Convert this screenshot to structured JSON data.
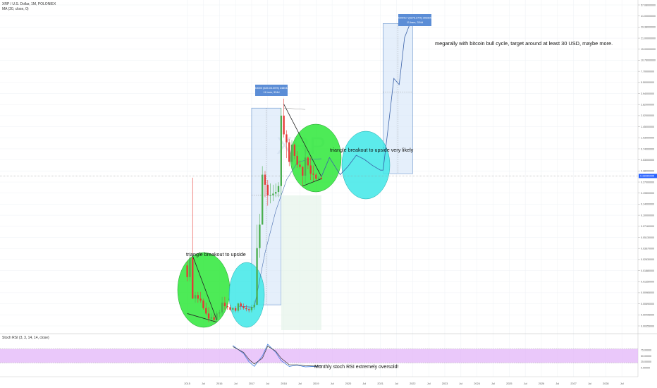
{
  "header": {
    "symbol_line": "XRP / U.S. Dollar, 1M, POLONIEX",
    "indicator_line": "MA (20, close, 0)",
    "stoch_line": "Stoch RSI (3, 3, 14, 14, close)"
  },
  "watermark": "XRP",
  "colors": {
    "bull": "#4caf50",
    "bear": "#e53935",
    "green_ellipse": "#2ee83a",
    "cyan_ellipse": "#3fe8e8",
    "range_box": "#cfe2f8",
    "range_border": "#4a7ec2",
    "rsi_band": "#e3b6f8",
    "current_price": "#2962ff"
  },
  "current_price_label": "0.33665095",
  "price_labels": [
    "57.08000000",
    "41.00000000",
    "29.38000000",
    "21.00000000",
    "15.00000000",
    "10.76000000",
    "7.70000000",
    "5.50000000",
    "3.94000000",
    "2.82000000",
    "2.02000000",
    "1.45000000",
    "1.03000000",
    "0.74000000",
    "0.53000000",
    "0.38000000",
    "0.27000000",
    "0.19500000",
    "0.14000000",
    "0.10000000",
    "0.07160000",
    "0.05130000",
    "0.03670000",
    "0.02630000",
    "0.01880000",
    "0.01350000",
    "0.00965000",
    "0.00690000",
    "0.00495000",
    "0.00355000"
  ],
  "time_labels": [
    "2015",
    "Jul",
    "2016",
    "Jul",
    "2017",
    "Jul",
    "2018",
    "Jul",
    "2019",
    "Jul",
    "2020",
    "Jul",
    "2021",
    "Jul",
    "2022",
    "Jul",
    "2023",
    "Jul",
    "2024",
    "Jul",
    "2025",
    "Jul",
    "2026",
    "Jul",
    "2027",
    "Jul",
    "2028",
    "Jul"
  ],
  "rsi_levels": [
    "75.00000",
    "50.00000",
    "25.00000",
    "0.00000"
  ],
  "measures": {
    "first": {
      "line1": "2.48043000 (625.03.00%) 2480430000",
      "line2": "11 bars, 334d"
    },
    "second": {
      "line1": "30.38000417 (8276.37%) 3038000417",
      "line2": "11 bars, 334d"
    }
  },
  "annotations": {
    "triangle1": "triangle breakout to upside",
    "triangle2": "triangle breakout to upside very likely",
    "target": "megarally with bitcoin bull cycle, target around at least 30 USD, maybe more.",
    "rsi_note": "Monthly stoch RSI extremely oversold!"
  },
  "chart_data": {
    "type": "candlestick",
    "title": "XRP / U.S. Dollar, 1M, POLONIEX",
    "scale": "log",
    "ylim": [
      0.00355,
      57.08
    ],
    "x_range": [
      "2014-11",
      "2029-01"
    ],
    "grid": true,
    "candles": [
      {
        "t": "2015-01",
        "o": 0.024,
        "h": 0.027,
        "l": 0.015,
        "c": 0.017
      },
      {
        "t": "2015-02",
        "o": 0.017,
        "h": 0.032,
        "l": 0.015,
        "c": 0.03
      },
      {
        "t": "2015-03",
        "o": 0.03,
        "h": 0.32,
        "l": 0.009,
        "c": 0.009
      },
      {
        "t": "2015-04",
        "o": 0.009,
        "h": 0.011,
        "l": 0.008,
        "c": 0.01
      },
      {
        "t": "2015-05",
        "o": 0.01,
        "h": 0.011,
        "l": 0.008,
        "c": 0.009
      },
      {
        "t": "2015-06",
        "o": 0.009,
        "h": 0.011,
        "l": 0.008,
        "c": 0.0085
      },
      {
        "t": "2015-07",
        "o": 0.0085,
        "h": 0.009,
        "l": 0.0065,
        "c": 0.0068
      },
      {
        "t": "2015-08",
        "o": 0.0068,
        "h": 0.008,
        "l": 0.0055,
        "c": 0.0058
      },
      {
        "t": "2015-09",
        "o": 0.0058,
        "h": 0.007,
        "l": 0.0045,
        "c": 0.005
      },
      {
        "t": "2015-10",
        "o": 0.005,
        "h": 0.0058,
        "l": 0.0045,
        "c": 0.0052
      },
      {
        "t": "2015-11",
        "o": 0.0052,
        "h": 0.0056,
        "l": 0.0045,
        "c": 0.0048
      },
      {
        "t": "2015-12",
        "o": 0.0048,
        "h": 0.0062,
        "l": 0.0045,
        "c": 0.0058
      },
      {
        "t": "2016-01",
        "o": 0.0058,
        "h": 0.0065,
        "l": 0.0052,
        "c": 0.006
      },
      {
        "t": "2016-02",
        "o": 0.006,
        "h": 0.0095,
        "l": 0.0055,
        "c": 0.008
      },
      {
        "t": "2016-03",
        "o": 0.008,
        "h": 0.0095,
        "l": 0.0065,
        "c": 0.0072
      },
      {
        "t": "2016-04",
        "o": 0.0072,
        "h": 0.0078,
        "l": 0.0065,
        "c": 0.007
      },
      {
        "t": "2016-05",
        "o": 0.007,
        "h": 0.0075,
        "l": 0.0062,
        "c": 0.0065
      },
      {
        "t": "2016-06",
        "o": 0.0065,
        "h": 0.007,
        "l": 0.006,
        "c": 0.0068
      },
      {
        "t": "2016-07",
        "o": 0.0068,
        "h": 0.0072,
        "l": 0.006,
        "c": 0.0063
      },
      {
        "t": "2016-08",
        "o": 0.0063,
        "h": 0.008,
        "l": 0.006,
        "c": 0.0078
      },
      {
        "t": "2016-09",
        "o": 0.0078,
        "h": 0.0082,
        "l": 0.0065,
        "c": 0.0072
      },
      {
        "t": "2016-10",
        "o": 0.0072,
        "h": 0.0078,
        "l": 0.0065,
        "c": 0.0068
      },
      {
        "t": "2016-11",
        "o": 0.0068,
        "h": 0.0075,
        "l": 0.0062,
        "c": 0.0066
      },
      {
        "t": "2016-12",
        "o": 0.0066,
        "h": 0.007,
        "l": 0.006,
        "c": 0.0064
      },
      {
        "t": "2017-01",
        "o": 0.0064,
        "h": 0.0075,
        "l": 0.006,
        "c": 0.007
      },
      {
        "t": "2017-02",
        "o": 0.007,
        "h": 0.0085,
        "l": 0.0065,
        "c": 0.0075
      },
      {
        "t": "2017-03",
        "o": 0.0075,
        "h": 0.08,
        "l": 0.0075,
        "c": 0.04
      },
      {
        "t": "2017-04",
        "o": 0.04,
        "h": 0.11,
        "l": 0.03,
        "c": 0.08
      },
      {
        "t": "2017-05",
        "o": 0.08,
        "h": 0.45,
        "l": 0.08,
        "c": 0.35
      },
      {
        "t": "2017-06",
        "o": 0.35,
        "h": 0.39,
        "l": 0.18,
        "c": 0.26
      },
      {
        "t": "2017-07",
        "o": 0.26,
        "h": 0.3,
        "l": 0.14,
        "c": 0.19
      },
      {
        "t": "2017-08",
        "o": 0.19,
        "h": 0.27,
        "l": 0.15,
        "c": 0.19
      },
      {
        "t": "2017-09",
        "o": 0.19,
        "h": 0.26,
        "l": 0.16,
        "c": 0.2
      },
      {
        "t": "2017-10",
        "o": 0.2,
        "h": 0.27,
        "l": 0.18,
        "c": 0.21
      },
      {
        "t": "2017-11",
        "o": 0.21,
        "h": 0.28,
        "l": 0.18,
        "c": 0.25
      },
      {
        "t": "2017-12",
        "o": 0.25,
        "h": 2.5,
        "l": 0.19,
        "c": 2.0
      },
      {
        "t": "2018-01",
        "o": 2.0,
        "h": 3.3,
        "l": 1.05,
        "c": 1.15
      },
      {
        "t": "2018-02",
        "o": 1.15,
        "h": 1.3,
        "l": 0.57,
        "c": 0.91
      },
      {
        "t": "2018-03",
        "o": 0.91,
        "h": 1.0,
        "l": 0.45,
        "c": 0.51
      },
      {
        "t": "2018-04",
        "o": 0.51,
        "h": 0.97,
        "l": 0.47,
        "c": 0.85
      },
      {
        "t": "2018-05",
        "o": 0.85,
        "h": 0.88,
        "l": 0.55,
        "c": 0.61
      },
      {
        "t": "2018-06",
        "o": 0.61,
        "h": 0.7,
        "l": 0.43,
        "c": 0.47
      },
      {
        "t": "2018-07",
        "o": 0.47,
        "h": 0.53,
        "l": 0.42,
        "c": 0.44
      },
      {
        "t": "2018-08",
        "o": 0.44,
        "h": 0.45,
        "l": 0.25,
        "c": 0.34
      },
      {
        "t": "2018-09",
        "o": 0.34,
        "h": 0.78,
        "l": 0.27,
        "c": 0.58
      },
      {
        "t": "2018-10",
        "o": 0.58,
        "h": 0.6,
        "l": 0.41,
        "c": 0.46
      },
      {
        "t": "2018-11",
        "o": 0.46,
        "h": 0.58,
        "l": 0.3,
        "c": 0.36
      },
      {
        "t": "2018-12",
        "o": 0.36,
        "h": 0.46,
        "l": 0.28,
        "c": 0.35
      },
      {
        "t": "2019-01",
        "o": 0.35,
        "h": 0.37,
        "l": 0.29,
        "c": 0.31
      },
      {
        "t": "2019-02",
        "o": 0.31,
        "h": 0.34,
        "l": 0.29,
        "c": 0.32
      },
      {
        "t": "2019-03",
        "o": 0.32,
        "h": 0.34,
        "l": 0.3,
        "c": 0.31
      }
    ],
    "projection": [
      {
        "t": "2019-03",
        "v": 0.33
      },
      {
        "t": "2019-06",
        "v": 0.58
      },
      {
        "t": "2019-10",
        "v": 0.35
      },
      {
        "t": "2020-01",
        "v": 0.45
      },
      {
        "t": "2020-04",
        "v": 0.62
      },
      {
        "t": "2020-07",
        "v": 0.55
      },
      {
        "t": "2020-10",
        "v": 0.46
      },
      {
        "t": "2021-01",
        "v": 0.4
      },
      {
        "t": "2021-02",
        "v": 0.4
      },
      {
        "t": "2021-04",
        "v": 1.5
      },
      {
        "t": "2021-06",
        "v": 6.0
      },
      {
        "t": "2021-08",
        "v": 5.0
      },
      {
        "t": "2021-10",
        "v": 20.0
      },
      {
        "t": "2021-12",
        "v": 30.0
      }
    ],
    "ma20": [
      {
        "t": "2016-08",
        "v": 0.0072
      },
      {
        "t": "2017-02",
        "v": 0.007
      },
      {
        "t": "2017-06",
        "v": 0.035
      },
      {
        "t": "2017-10",
        "v": 0.12
      },
      {
        "t": "2018-02",
        "v": 0.3
      },
      {
        "t": "2018-06",
        "v": 0.5
      },
      {
        "t": "2018-10",
        "v": 0.55
      },
      {
        "t": "2019-03",
        "v": 0.56
      }
    ],
    "stoch_rsi": {
      "k": [
        {
          "t": "2016-06",
          "v": 95
        },
        {
          "t": "2016-10",
          "v": 60
        },
        {
          "t": "2016-12",
          "v": 25
        },
        {
          "t": "2017-02",
          "v": 5
        },
        {
          "t": "2017-05",
          "v": 50
        },
        {
          "t": "2017-07",
          "v": 100
        },
        {
          "t": "2017-10",
          "v": 65
        },
        {
          "t": "2017-12",
          "v": 30
        },
        {
          "t": "2018-03",
          "v": 5
        },
        {
          "t": "2018-06",
          "v": 10
        },
        {
          "t": "2018-09",
          "v": 3
        },
        {
          "t": "2019-01",
          "v": 5
        },
        {
          "t": "2019-03",
          "v": 8
        }
      ],
      "d": [
        {
          "t": "2016-06",
          "v": 90
        },
        {
          "t": "2016-10",
          "v": 65
        },
        {
          "t": "2016-12",
          "v": 35
        },
        {
          "t": "2017-02",
          "v": 15
        },
        {
          "t": "2017-05",
          "v": 40
        },
        {
          "t": "2017-07",
          "v": 92
        },
        {
          "t": "2017-10",
          "v": 70
        },
        {
          "t": "2017-12",
          "v": 40
        },
        {
          "t": "2018-03",
          "v": 12
        },
        {
          "t": "2018-06",
          "v": 12
        },
        {
          "t": "2018-09",
          "v": 8
        },
        {
          "t": "2019-01",
          "v": 6
        },
        {
          "t": "2019-03",
          "v": 7
        }
      ],
      "levels": [
        75,
        50,
        25,
        0
      ]
    }
  }
}
